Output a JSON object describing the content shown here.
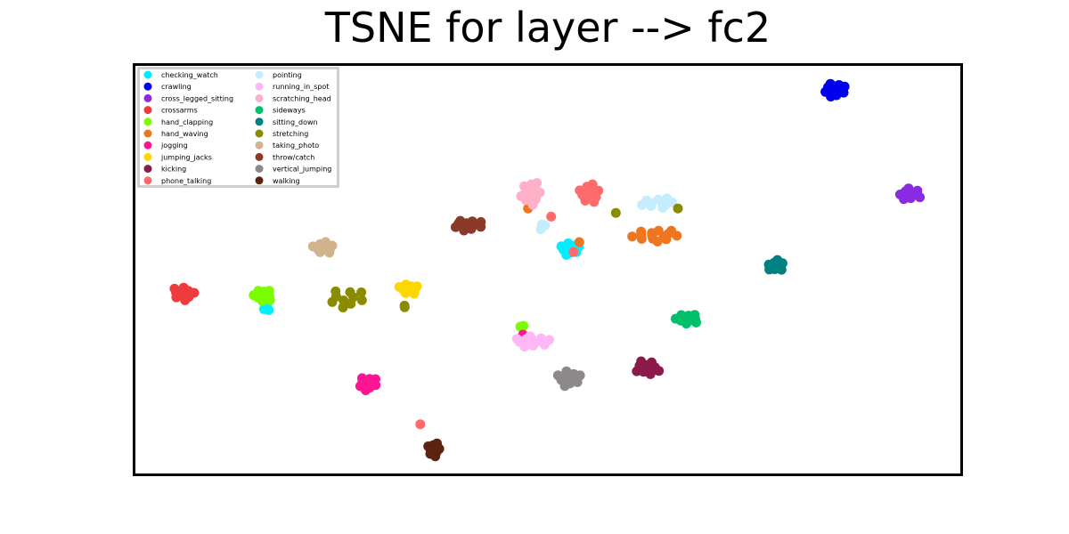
{
  "chart_data": {
    "type": "scatter",
    "title": "TSNE for layer --> fc2",
    "xlabel": "",
    "ylabel": "",
    "x_ticks": "none",
    "y_ticks": "none",
    "xlim": [
      0,
      100
    ],
    "ylim": [
      0,
      100
    ],
    "grid": false,
    "legend_placement": "top-left",
    "legend_columns": 2,
    "series": [
      {
        "name": "checking_watch",
        "color": "#00eeff",
        "clusters": [
          {
            "x": 52.7,
            "y": 55.0,
            "count": 10,
            "spread": [
              1.2,
              1.8
            ]
          },
          {
            "x": 16.0,
            "y": 40.6,
            "count": 3,
            "spread": [
              0.4,
              1.0
            ]
          }
        ]
      },
      {
        "name": "crawling",
        "color": "#0000ee",
        "clusters": [
          {
            "x": 84.6,
            "y": 93.7,
            "count": 14,
            "spread": [
              1.4,
              1.8
            ]
          }
        ]
      },
      {
        "name": "cross_legged_sitting",
        "color": "#8a2be2",
        "clusters": [
          {
            "x": 93.8,
            "y": 68.4,
            "count": 10,
            "spread": [
              1.6,
              1.5
            ]
          }
        ]
      },
      {
        "name": "crossarms",
        "color": "#ee3b3b",
        "clusters": [
          {
            "x": 6.0,
            "y": 44.3,
            "count": 10,
            "spread": [
              1.5,
              1.8
            ]
          }
        ]
      },
      {
        "name": "hand_clapping",
        "color": "#7cfc00",
        "clusters": [
          {
            "x": 15.6,
            "y": 43.8,
            "count": 10,
            "spread": [
              1.2,
              1.8
            ]
          },
          {
            "x": 46.8,
            "y": 36.4,
            "count": 2,
            "spread": [
              0.3,
              0.8
            ]
          }
        ]
      },
      {
        "name": "hand_waving",
        "color": "#ee7621",
        "clusters": [
          {
            "x": 63.1,
            "y": 58.3,
            "count": 14,
            "spread": [
              3.0,
              1.6
            ]
          },
          {
            "x": 53.8,
            "y": 56.7,
            "count": 1,
            "spread": [
              0,
              0
            ]
          },
          {
            "x": 47.6,
            "y": 64.9,
            "count": 1,
            "spread": [
              0,
              0
            ]
          }
        ]
      },
      {
        "name": "jogging",
        "color": "#ff1493",
        "clusters": [
          {
            "x": 28.2,
            "y": 22.3,
            "count": 10,
            "spread": [
              1.3,
              1.8
            ]
          },
          {
            "x": 47.0,
            "y": 34.2,
            "count": 1,
            "spread": [
              0,
              0
            ]
          }
        ]
      },
      {
        "name": "jumping_jacks",
        "color": "#ffd700",
        "clusters": [
          {
            "x": 33.2,
            "y": 45.4,
            "count": 9,
            "spread": [
              1.3,
              1.5
            ]
          }
        ]
      },
      {
        "name": "kicking",
        "color": "#8b1a4a",
        "clusters": [
          {
            "x": 62.0,
            "y": 26.0,
            "count": 10,
            "spread": [
              1.6,
              2.0
            ]
          }
        ]
      },
      {
        "name": "phone_talking",
        "color": "#ff6a6a",
        "clusters": [
          {
            "x": 55.0,
            "y": 68.5,
            "count": 12,
            "spread": [
              1.4,
              2.4
            ]
          },
          {
            "x": 50.4,
            "y": 62.9,
            "count": 1,
            "spread": [
              0,
              0
            ]
          },
          {
            "x": 53.1,
            "y": 54.3,
            "count": 1,
            "spread": [
              0,
              0
            ]
          },
          {
            "x": 34.6,
            "y": 12.4,
            "count": 1,
            "spread": [
              0,
              0
            ]
          }
        ]
      },
      {
        "name": "pointing",
        "color": "#c6ecff",
        "clusters": [
          {
            "x": 63.4,
            "y": 66.2,
            "count": 10,
            "spread": [
              2.2,
              1.4
            ]
          },
          {
            "x": 49.3,
            "y": 60.5,
            "count": 3,
            "spread": [
              0.4,
              1.2
            ]
          }
        ]
      },
      {
        "name": "running_in_spot",
        "color": "#ffb8f5",
        "clusters": [
          {
            "x": 48.2,
            "y": 32.5,
            "count": 12,
            "spread": [
              2.2,
              1.6
            ]
          }
        ]
      },
      {
        "name": "scratching_head",
        "color": "#ffb0c8",
        "clusters": [
          {
            "x": 48.0,
            "y": 68.6,
            "count": 12,
            "spread": [
              1.3,
              3.2
            ]
          }
        ]
      },
      {
        "name": "sideways",
        "color": "#00c06a",
        "clusters": [
          {
            "x": 66.8,
            "y": 38.1,
            "count": 10,
            "spread": [
              1.5,
              1.5
            ]
          }
        ]
      },
      {
        "name": "sitting_down",
        "color": "#008080",
        "clusters": [
          {
            "x": 77.6,
            "y": 51.0,
            "count": 9,
            "spread": [
              1.2,
              1.5
            ]
          }
        ]
      },
      {
        "name": "stretching",
        "color": "#8b8b00",
        "clusters": [
          {
            "x": 25.6,
            "y": 43.0,
            "count": 10,
            "spread": [
              2.5,
              2.4
            ]
          },
          {
            "x": 32.6,
            "y": 41.0,
            "count": 2,
            "spread": [
              0.5,
              0.3
            ]
          },
          {
            "x": 58.2,
            "y": 63.8,
            "count": 1,
            "spread": [
              0,
              0
            ]
          },
          {
            "x": 65.7,
            "y": 64.9,
            "count": 1,
            "spread": [
              0,
              0
            ]
          }
        ]
      },
      {
        "name": "taking_photo",
        "color": "#d2b48c",
        "clusters": [
          {
            "x": 22.9,
            "y": 55.3,
            "count": 10,
            "spread": [
              1.5,
              1.5
            ]
          }
        ]
      },
      {
        "name": "throw/catch",
        "color": "#8b3a2a",
        "clusters": [
          {
            "x": 40.3,
            "y": 60.8,
            "count": 12,
            "spread": [
              2.0,
              1.4
            ]
          }
        ]
      },
      {
        "name": "vertical_jumping",
        "color": "#8b8989",
        "clusters": [
          {
            "x": 52.6,
            "y": 23.5,
            "count": 10,
            "spread": [
              1.5,
              2.3
            ]
          }
        ]
      },
      {
        "name": "walking",
        "color": "#5c2310",
        "clusters": [
          {
            "x": 36.2,
            "y": 6.2,
            "count": 9,
            "spread": [
              0.9,
              1.8
            ]
          }
        ]
      }
    ]
  }
}
